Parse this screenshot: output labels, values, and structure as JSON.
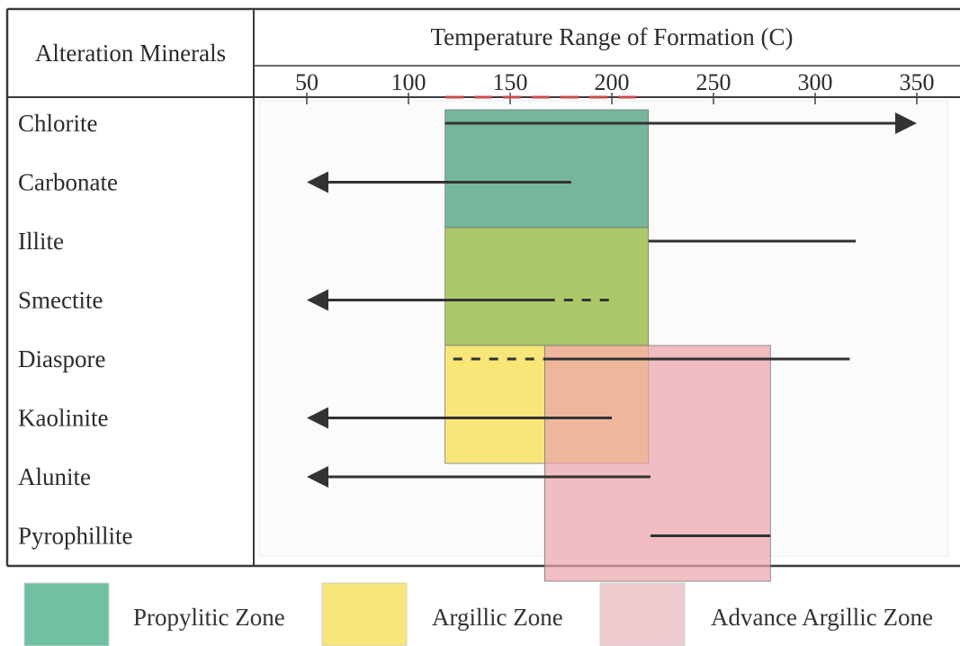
{
  "chart_data": {
    "type": "range-table",
    "row_header": "Alteration Minerals",
    "title": "Temperature Range of Formation (C)",
    "x_ticks": [
      50,
      100,
      150,
      200,
      250,
      300,
      350
    ],
    "xlim": [
      25,
      370
    ],
    "rows": [
      {
        "label": "Chlorite",
        "min": 118,
        "max": 350,
        "arrow": "right",
        "dashed_from": null
      },
      {
        "label": "Carbonate",
        "min": 50,
        "max": 180,
        "arrow": "left",
        "dashed_from": null
      },
      {
        "label": "Illite",
        "min": 218,
        "max": 320,
        "arrow": null,
        "dashed_from": null
      },
      {
        "label": "Smectite",
        "min": 50,
        "max": 200,
        "arrow": "left",
        "dashed_from": 172
      },
      {
        "label": "Diaspore",
        "min": 122,
        "max": 317,
        "arrow": null,
        "dashed_from": null,
        "dashed_to": 168
      },
      {
        "label": "Kaolinite",
        "min": 50,
        "max": 200,
        "arrow": "left",
        "dashed_from": null
      },
      {
        "label": "Alunite",
        "min": 50,
        "max": 219,
        "arrow": "left",
        "dashed_from": null
      },
      {
        "label": "Pyrophillite",
        "min": 219,
        "max": 278,
        "arrow": null,
        "dashed_from": null
      }
    ],
    "zones": [
      {
        "name": "Propylitic Zone",
        "x_from": 118,
        "x_to": 218,
        "row_from": 0,
        "row_to": 1,
        "color": "#5fa98a"
      },
      {
        "name": "Argillic Zone",
        "x_from": 118,
        "x_to": 218,
        "row_from": 2,
        "row_to": 3,
        "color": "#9cbf4f"
      },
      {
        "name": "Argillic Zone",
        "x_from": 118,
        "x_to": 218,
        "row_from": 4,
        "row_to": 5,
        "color": "#f8e262"
      },
      {
        "name": "Advance Argillic Zone",
        "x_from": 167,
        "x_to": 278,
        "row_from": 4,
        "row_to": 7,
        "color": "#e9a2aa"
      }
    ],
    "legend": [
      {
        "name": "Propylitic Zone",
        "color": "#6fc1a2"
      },
      {
        "name": "Argillic Zone",
        "color": "#f8e67a"
      },
      {
        "name": "Advance Argillic Zone",
        "color": "#eecbcf"
      }
    ],
    "grid": false
  }
}
